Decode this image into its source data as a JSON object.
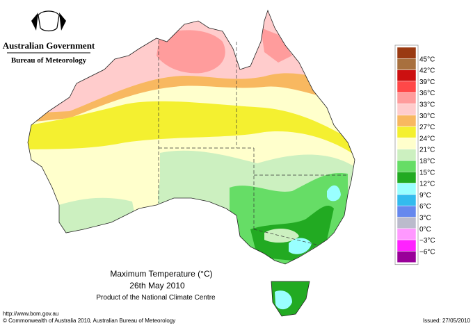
{
  "header": {
    "government": "Australian Government",
    "agency": "Bureau of Meteorology"
  },
  "legend": {
    "labels": [
      "45°C",
      "42°C",
      "39°C",
      "36°C",
      "33°C",
      "30°C",
      "27°C",
      "24°C",
      "21°C",
      "18°C",
      "15°C",
      "12°C",
      "9°C",
      "6°C",
      "3°C",
      "0°C",
      "−3°C",
      "−6°C"
    ],
    "colors": [
      "#9a3a12",
      "#a8703e",
      "#cc1010",
      "#ff4848",
      "#ff9c9c",
      "#ffcccc",
      "#f8b860",
      "#f4f030",
      "#ffffcc",
      "#ccf0c0",
      "#66dd66",
      "#22aa22",
      "#99ffff",
      "#33bbee",
      "#6688ee",
      "#bbbbcc",
      "#ff99ff",
      "#ff22ff",
      "#990099"
    ]
  },
  "caption": {
    "title": "Maximum Temperature (°C)",
    "date": "26th May 2010",
    "product": "Product of the National Climate Centre"
  },
  "footer": {
    "url": "http://www.bom.gov.au",
    "copyright": "© Commonwealth of Australia 2010, Australian Bureau of Meteorology",
    "issued": "Issued: 27/05/2010"
  }
}
